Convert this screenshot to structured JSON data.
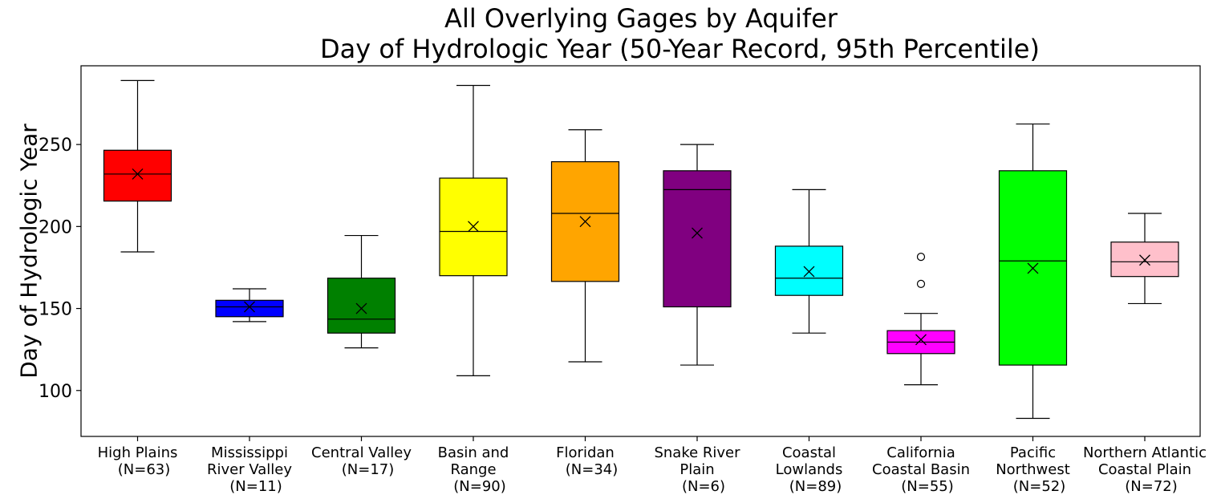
{
  "chart_data": {
    "type": "box",
    "title": "All Overlying Gages by Aquifer",
    "subtitle": "Day of Hydrologic Year (50-Year Record, 95th Percentile)",
    "xlabel": "",
    "ylabel": "Day of Hydrologic Year",
    "ylim": [
      72,
      298
    ],
    "yticks": [
      100,
      150,
      200,
      250
    ],
    "grid": false,
    "legend": "none",
    "mean_marker": "x",
    "categories": [
      {
        "name": "High Plains",
        "n_label": "(N=63)",
        "color": "#ff0000",
        "whisker_low": 184.5,
        "q1": 215.5,
        "median": 232,
        "q3": 246.5,
        "whisker_high": 289,
        "mean": 232,
        "outliers": []
      },
      {
        "name": "Mississippi River Valley",
        "n_label": "(N=11)",
        "color": "#0000ff",
        "whisker_low": 142,
        "q1": 145,
        "median": 151,
        "q3": 155,
        "whisker_high": 162,
        "mean": 151,
        "outliers": []
      },
      {
        "name": "Central Valley",
        "n_label": "(N=17)",
        "color": "#008000",
        "whisker_low": 126,
        "q1": 135,
        "median": 143.5,
        "q3": 168.5,
        "whisker_high": 194.5,
        "mean": 150,
        "outliers": []
      },
      {
        "name": "Basin and Range",
        "n_label": "(N=90)",
        "color": "#ffff00",
        "whisker_low": 109,
        "q1": 170,
        "median": 197,
        "q3": 229.5,
        "whisker_high": 286,
        "mean": 200,
        "outliers": []
      },
      {
        "name": "Floridan",
        "n_label": "(N=34)",
        "color": "#ffa500",
        "whisker_low": 117.5,
        "q1": 166.5,
        "median": 208,
        "q3": 239.5,
        "whisker_high": 259,
        "mean": 203,
        "outliers": []
      },
      {
        "name": "Snake River Plain",
        "n_label": "(N=6)",
        "color": "#800080",
        "whisker_low": 115.5,
        "q1": 151,
        "median": 222.5,
        "q3": 234,
        "whisker_high": 250,
        "mean": 196,
        "outliers": []
      },
      {
        "name": "Coastal Lowlands",
        "n_label": "(N=89)",
        "color": "#00ffff",
        "whisker_low": 135,
        "q1": 158,
        "median": 168.5,
        "q3": 188,
        "whisker_high": 222.5,
        "mean": 172.5,
        "outliers": []
      },
      {
        "name": "California Coastal Basin",
        "n_label": "(N=55)",
        "color": "#ff00ff",
        "whisker_low": 103.5,
        "q1": 122.5,
        "median": 129.5,
        "q3": 136.5,
        "whisker_high": 147,
        "mean": 131,
        "outliers": [
          165,
          181.5
        ]
      },
      {
        "name": "Pacific Northwest",
        "n_label": "(N=52)",
        "color": "#00ff00",
        "whisker_low": 83,
        "q1": 115.5,
        "median": 179,
        "q3": 234,
        "whisker_high": 262.5,
        "mean": 174.5,
        "outliers": []
      },
      {
        "name": "Northern Atlantic Coastal Plain",
        "n_label": "(N=72)",
        "color": "#ffc0cb",
        "whisker_low": 153,
        "q1": 169.5,
        "median": 178.5,
        "q3": 190.5,
        "whisker_high": 208,
        "mean": 179.5,
        "outliers": []
      }
    ],
    "x_tick_labels": [
      [
        "High Plains",
        "(N=63)"
      ],
      [
        "Mississippi",
        "River Valley",
        "(N=11)"
      ],
      [
        "Central Valley",
        "(N=17)"
      ],
      [
        "Basin and",
        "Range",
        "(N=90)"
      ],
      [
        "Floridan",
        "(N=34)"
      ],
      [
        "Snake River",
        "Plain",
        "(N=6)"
      ],
      [
        "Coastal",
        "Lowlands",
        "(N=89)"
      ],
      [
        "California",
        "Coastal Basin",
        "(N=55)"
      ],
      [
        "Pacific",
        "Northwest",
        "(N=52)"
      ],
      [
        "Northern Atlantic",
        "Coastal Plain",
        "(N=72)"
      ]
    ]
  }
}
